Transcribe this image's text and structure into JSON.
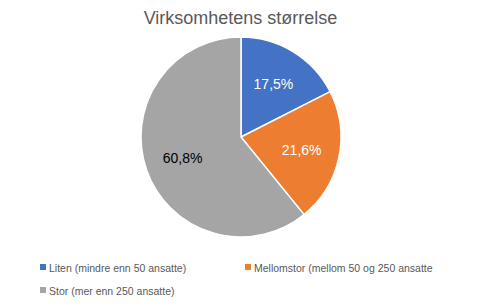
{
  "chart_data": {
    "type": "pie",
    "title": "Virksomhetens størrelse",
    "categories": [
      "Liten (mindre enn 50 ansatte)",
      "Mellomstor (mellom 50 og 250 ansatte",
      "Stor (mer enn 250 ansatte)"
    ],
    "values": [
      17.5,
      21.6,
      60.8
    ],
    "value_labels": [
      "17,5%",
      "21,6%",
      "60,8%"
    ],
    "colors": [
      "#4472c4",
      "#ed7d31",
      "#a5a5a5"
    ],
    "data_labels": true,
    "legend": "bottom"
  }
}
